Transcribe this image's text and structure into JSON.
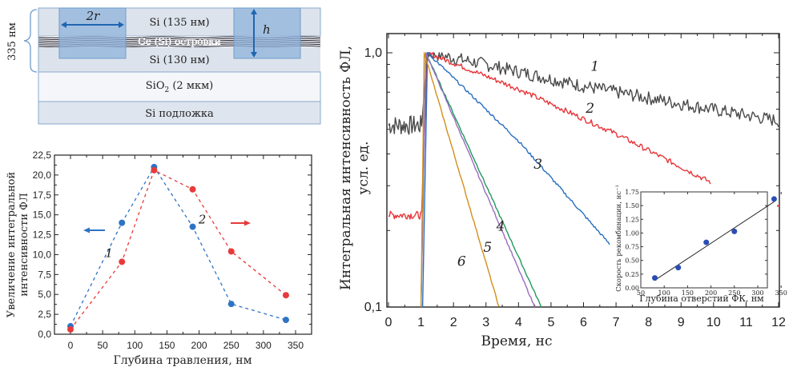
{
  "diagram": {
    "thickness_label": "335 нм",
    "layers": [
      {
        "label": "Si (135 нм)"
      },
      {
        "label": "Ge (Si) островки"
      },
      {
        "label": "Si (130 нм)"
      },
      {
        "label_main": "SiO",
        "label_sub": "2",
        "label_rest": " (2 мкм)"
      },
      {
        "label": "Si подложка"
      }
    ],
    "hole_width_label": "2r",
    "hole_depth_label": "h",
    "colors": {
      "si_layer": "#dde3ec",
      "sio2_layer": "#f4f6f9",
      "substrate": "#dfe5ee",
      "hole": "#8fb3dc",
      "border": "#6f9cc9",
      "arrow": "#1f66b0"
    }
  },
  "chart_data": [
    {
      "id": "left",
      "type": "line",
      "title": "",
      "xlabel": "Глубина травления, нм",
      "ylabel_lines": [
        "Увеличение интегральной",
        "интенсивности ФЛ"
      ],
      "xlim": [
        -15,
        370
      ],
      "ylim": [
        0,
        22.5
      ],
      "xticks": [
        0,
        50,
        100,
        150,
        200,
        250,
        300,
        350
      ],
      "xtick_labels": [
        "0",
        "50",
        "100",
        "150",
        "200",
        "250",
        "300",
        "350"
      ],
      "yticks": [
        0,
        2.5,
        5,
        7.5,
        10,
        12.5,
        15,
        17.5,
        20,
        22.5
      ],
      "ytick_labels": [
        "0,0",
        "2,5",
        "5,0",
        "7,5",
        "10,0",
        "12,5",
        "15,0",
        "17,5",
        "20,0",
        "22,5"
      ],
      "grid": false,
      "series": [
        {
          "name": "1",
          "color": "#2f73c4",
          "x": [
            0,
            80,
            130,
            190,
            250,
            335
          ],
          "y": [
            1.0,
            14.0,
            21.0,
            13.5,
            3.8,
            1.8
          ],
          "axis": "left"
        },
        {
          "name": "2",
          "color": "#e83a3a",
          "x": [
            0,
            80,
            130,
            190,
            250,
            335
          ],
          "y": [
            0.6,
            9.1,
            20.6,
            18.2,
            10.4,
            4.9
          ],
          "axis": "right"
        }
      ],
      "annotations": [
        {
          "text": "1",
          "x": 60,
          "y": 9.7
        },
        {
          "text": "2",
          "x": 205,
          "y": 13.9
        }
      ]
    },
    {
      "id": "main",
      "type": "line",
      "title": "",
      "xlabel": "Время, нс",
      "ylabel_lines": [
        "Интегральная интенсивность ФЛ,",
        "усл. ед."
      ],
      "xlim": [
        0,
        12
      ],
      "ylim": [
        0.1,
        1.25
      ],
      "yscale": "log",
      "xticks": [
        0,
        1,
        2,
        3,
        4,
        5,
        6,
        7,
        8,
        9,
        10,
        11,
        12
      ],
      "xtick_labels": [
        "0",
        "1",
        "2",
        "3",
        "4",
        "5",
        "6",
        "7",
        "8",
        "9",
        "10",
        "11",
        "12"
      ],
      "yticks": [
        0.1,
        1.0
      ],
      "ytick_labels": [
        "0,1",
        "1,0"
      ],
      "grid": false,
      "series": [
        {
          "name": "1",
          "color": "#4a4a4a",
          "pre_level": 0.52,
          "onset": 1.05,
          "peak_t": 1.2,
          "points": [
            [
              1.2,
              1.0
            ],
            [
              3,
              0.9
            ],
            [
              6,
              0.74
            ],
            [
              9,
              0.63
            ],
            [
              12,
              0.54
            ]
          ],
          "end_t": 12,
          "noise": 0.03
        },
        {
          "name": "2",
          "color": "#e8353a",
          "pre_level": 0.23,
          "onset": 1.05,
          "peak_t": 1.2,
          "points": [
            [
              1.2,
              1.0
            ],
            [
              4,
              0.72
            ],
            [
              7,
              0.48
            ],
            [
              9.9,
              0.31
            ]
          ],
          "end_t": 9.9,
          "noise": 0.012
        },
        {
          "name": "3",
          "color": "#2a6fbe",
          "pre_level": null,
          "onset": 1.05,
          "peak_t": 1.2,
          "points": [
            [
              1.2,
              1.0
            ],
            [
              4,
              0.45
            ],
            [
              6.8,
              0.177
            ]
          ],
          "end_t": 6.8,
          "noise": 0.006
        },
        {
          "name": "4",
          "color": "#1f9a5e",
          "pre_level": null,
          "onset": 1.0,
          "peak_t": 1.15,
          "points": [
            [
              1.15,
              1.0
            ],
            [
              4.7,
              0.1
            ]
          ],
          "end_t": 4.7,
          "noise": 0.004
        },
        {
          "name": "5",
          "color": "#9a6cc0",
          "pre_level": null,
          "onset": 1.0,
          "peak_t": 1.15,
          "points": [
            [
              1.15,
              1.0
            ],
            [
              4.5,
              0.1
            ]
          ],
          "end_t": 4.5,
          "noise": 0.004
        },
        {
          "name": "6",
          "color": "#d38f1c",
          "pre_level": null,
          "onset": 1.0,
          "peak_t": 1.1,
          "points": [
            [
              1.1,
              1.0
            ],
            [
              3.4,
              0.1
            ]
          ],
          "end_t": 3.4,
          "noise": 0.004
        }
      ],
      "annotations": [
        {
          "text": "1",
          "x": 6.35,
          "y": 0.85
        },
        {
          "text": "2",
          "x": 6.2,
          "y": 0.58
        },
        {
          "text": "3",
          "x": 4.6,
          "y": 0.35
        },
        {
          "text": "4",
          "x": 3.45,
          "y": 0.2
        },
        {
          "text": "5",
          "x": 3.05,
          "y": 0.165
        },
        {
          "text": "6",
          "x": 2.25,
          "y": 0.145
        }
      ]
    },
    {
      "id": "inset",
      "type": "scatter",
      "title": "",
      "xlabel": "Глубина отверстий ФК, нм",
      "ylabel": "Скорость рекомбинации, нс⁻¹",
      "xlim": [
        50,
        375
      ],
      "ylim": [
        0,
        1.75
      ],
      "xticks": [
        50,
        100,
        150,
        200,
        250,
        300,
        350
      ],
      "xtick_labels": [
        "50",
        "100",
        "150",
        "200",
        "250",
        "300",
        "350"
      ],
      "yticks": [
        0,
        0.25,
        0.5,
        0.75,
        1.0,
        1.25,
        1.5,
        1.75
      ],
      "ytick_labels": [
        "0.00",
        "0.25",
        "0.50",
        "0.75",
        "1.00",
        "1.25",
        "1.50",
        "1.75"
      ],
      "grid": false,
      "points": {
        "x": [
          80,
          130,
          190,
          250,
          335
        ],
        "y": [
          0.18,
          0.37,
          0.83,
          1.03,
          1.62
        ],
        "color": "#2a4db3"
      },
      "fit_line": {
        "x": [
          80,
          335
        ],
        "y": [
          0.14,
          1.57
        ],
        "color": "#222222"
      }
    }
  ]
}
